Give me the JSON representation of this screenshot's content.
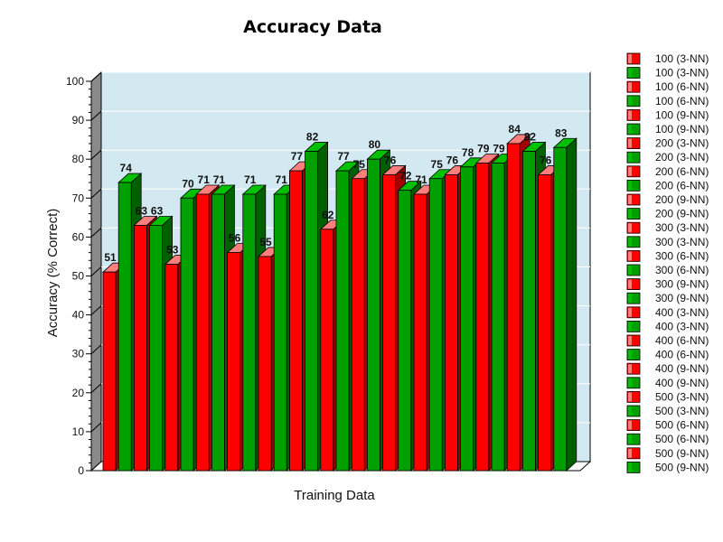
{
  "chart_data": {
    "type": "bar",
    "title": "Accuracy Data",
    "xlabel": "Training Data",
    "ylabel": "Accuracy (% Correct)",
    "ylim": [
      0,
      100
    ],
    "yticks": [
      0,
      10,
      20,
      30,
      40,
      50,
      60,
      70,
      80,
      90,
      100
    ],
    "grid": true,
    "legend_position": "right",
    "colors": {
      "red": "#ff0000",
      "red_top": "#ff7f7f",
      "red_side": "#a00000",
      "green": "#00a000",
      "green_top": "#00c000",
      "green_side": "#006000",
      "plot_background": "#d3e9f2",
      "wall": "#8a8a8a"
    },
    "series": [
      {
        "name": "100 (3-NN)",
        "color": "red",
        "values": [
          51
        ]
      },
      {
        "name": "100 (3-NN)",
        "color": "green",
        "values": [
          74
        ]
      },
      {
        "name": "100 (6-NN)",
        "color": "red",
        "values": [
          63
        ]
      },
      {
        "name": "100 (6-NN)",
        "color": "green",
        "values": [
          63
        ]
      },
      {
        "name": "100 (9-NN)",
        "color": "red",
        "values": [
          53
        ]
      },
      {
        "name": "100 (9-NN)",
        "color": "green",
        "values": [
          70
        ]
      },
      {
        "name": "200 (3-NN)",
        "color": "red",
        "values": [
          71
        ]
      },
      {
        "name": "200 (3-NN)",
        "color": "green",
        "values": [
          71
        ]
      },
      {
        "name": "200 (6-NN)",
        "color": "red",
        "values": [
          56
        ]
      },
      {
        "name": "200 (6-NN)",
        "color": "green",
        "values": [
          71
        ]
      },
      {
        "name": "200 (9-NN)",
        "color": "red",
        "values": [
          55
        ]
      },
      {
        "name": "200 (9-NN)",
        "color": "green",
        "values": [
          71
        ]
      },
      {
        "name": "300 (3-NN)",
        "color": "red",
        "values": [
          77
        ]
      },
      {
        "name": "300 (3-NN)",
        "color": "green",
        "values": [
          82
        ]
      },
      {
        "name": "300 (6-NN)",
        "color": "red",
        "values": [
          62
        ]
      },
      {
        "name": "300 (6-NN)",
        "color": "green",
        "values": [
          77
        ]
      },
      {
        "name": "300 (9-NN)",
        "color": "red",
        "values": [
          75
        ]
      },
      {
        "name": "300 (9-NN)",
        "color": "green",
        "values": [
          80
        ]
      },
      {
        "name": "400 (3-NN)",
        "color": "red",
        "values": [
          76
        ]
      },
      {
        "name": "400 (3-NN)",
        "color": "green",
        "values": [
          72
        ]
      },
      {
        "name": "400 (6-NN)",
        "color": "red",
        "values": [
          71
        ]
      },
      {
        "name": "400 (6-NN)",
        "color": "green",
        "values": [
          75
        ]
      },
      {
        "name": "400 (9-NN)",
        "color": "red",
        "values": [
          76
        ]
      },
      {
        "name": "400 (9-NN)",
        "color": "green",
        "values": [
          78
        ]
      },
      {
        "name": "500 (3-NN)",
        "color": "red",
        "values": [
          79
        ]
      },
      {
        "name": "500 (3-NN)",
        "color": "green",
        "values": [
          79
        ]
      },
      {
        "name": "500 (6-NN)",
        "color": "red",
        "values": [
          84
        ]
      },
      {
        "name": "500 (6-NN)",
        "color": "green",
        "values": [
          82
        ]
      },
      {
        "name": "500 (9-NN)",
        "color": "red",
        "values": [
          76
        ]
      },
      {
        "name": "500 (9-NN)",
        "color": "green",
        "values": [
          83
        ]
      }
    ]
  }
}
